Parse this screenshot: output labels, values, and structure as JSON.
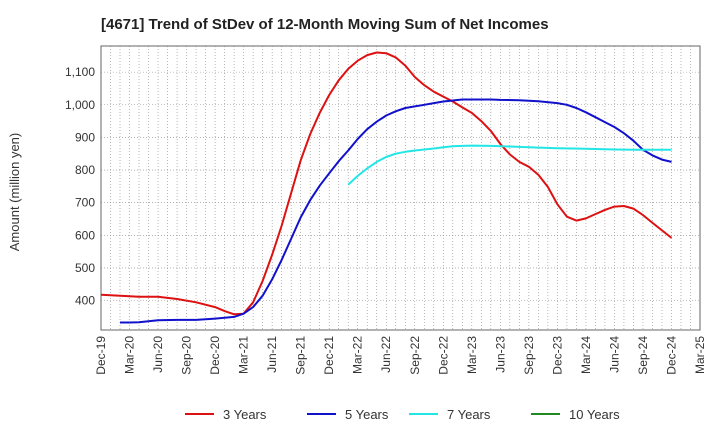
{
  "chart_data": {
    "type": "line",
    "title": "[4671]  Trend of StDev of 12-Month Moving Sum of Net Incomes",
    "ylabel": "Amount (million yen)",
    "xlabel": "",
    "ylim": [
      310,
      1180
    ],
    "yticks": [
      400,
      500,
      600,
      700,
      800,
      900,
      1000,
      1100
    ],
    "ytick_labels": [
      "400",
      "500",
      "600",
      "700",
      "800",
      "900",
      "1,000",
      "1,100"
    ],
    "xlim": [
      "2019-12",
      "2025-03"
    ],
    "xtick_labels": [
      "Dec-19",
      "Mar-20",
      "Jun-20",
      "Sep-20",
      "Dec-20",
      "Mar-21",
      "Jun-21",
      "Sep-21",
      "Dec-21",
      "Mar-22",
      "Jun-22",
      "Sep-22",
      "Dec-22",
      "Mar-23",
      "Jun-23",
      "Sep-23",
      "Dec-23",
      "Mar-24",
      "Jun-24",
      "Sep-24",
      "Dec-24",
      "Mar-25"
    ],
    "grid": true,
    "legend_position": "bottom",
    "series": [
      {
        "name": "3 Years",
        "color": "#dd1111",
        "points": [
          [
            "2019-12",
            418
          ],
          [
            "2020-02",
            415
          ],
          [
            "2020-04",
            412
          ],
          [
            "2020-06",
            412
          ],
          [
            "2020-08",
            405
          ],
          [
            "2020-10",
            395
          ],
          [
            "2020-12",
            380
          ],
          [
            "2021-01",
            368
          ],
          [
            "2021-02",
            358
          ],
          [
            "2021-03",
            360
          ],
          [
            "2021-04",
            395
          ],
          [
            "2021-05",
            460
          ],
          [
            "2021-06",
            540
          ],
          [
            "2021-07",
            630
          ],
          [
            "2021-08",
            730
          ],
          [
            "2021-09",
            830
          ],
          [
            "2021-10",
            910
          ],
          [
            "2021-11",
            975
          ],
          [
            "2021-12",
            1030
          ],
          [
            "2022-01",
            1075
          ],
          [
            "2022-02",
            1110
          ],
          [
            "2022-03",
            1135
          ],
          [
            "2022-04",
            1152
          ],
          [
            "2022-05",
            1160
          ],
          [
            "2022-06",
            1158
          ],
          [
            "2022-07",
            1145
          ],
          [
            "2022-08",
            1120
          ],
          [
            "2022-09",
            1085
          ],
          [
            "2022-10",
            1060
          ],
          [
            "2022-11",
            1040
          ],
          [
            "2022-12",
            1025
          ],
          [
            "2023-01",
            1010
          ],
          [
            "2023-02",
            992
          ],
          [
            "2023-03",
            975
          ],
          [
            "2023-04",
            950
          ],
          [
            "2023-05",
            920
          ],
          [
            "2023-06",
            880
          ],
          [
            "2023-07",
            848
          ],
          [
            "2023-08",
            825
          ],
          [
            "2023-09",
            810
          ],
          [
            "2023-10",
            785
          ],
          [
            "2023-11",
            748
          ],
          [
            "2023-12",
            695
          ],
          [
            "2024-01",
            657
          ],
          [
            "2024-02",
            645
          ],
          [
            "2024-03",
            652
          ],
          [
            "2024-04",
            665
          ],
          [
            "2024-05",
            678
          ],
          [
            "2024-06",
            688
          ],
          [
            "2024-07",
            690
          ],
          [
            "2024-08",
            682
          ],
          [
            "2024-09",
            662
          ],
          [
            "2024-10",
            638
          ],
          [
            "2024-11",
            615
          ],
          [
            "2024-12",
            592
          ]
        ]
      },
      {
        "name": "5 Years",
        "color": "#1111cc",
        "points": [
          [
            "2020-02",
            333
          ],
          [
            "2020-03",
            333
          ],
          [
            "2020-04",
            334
          ],
          [
            "2020-05",
            337
          ],
          [
            "2020-06",
            340
          ],
          [
            "2020-08",
            341
          ],
          [
            "2020-10",
            341
          ],
          [
            "2020-12",
            345
          ],
          [
            "2021-02",
            350
          ],
          [
            "2021-03",
            360
          ],
          [
            "2021-04",
            380
          ],
          [
            "2021-05",
            415
          ],
          [
            "2021-06",
            465
          ],
          [
            "2021-07",
            525
          ],
          [
            "2021-08",
            590
          ],
          [
            "2021-09",
            655
          ],
          [
            "2021-10",
            708
          ],
          [
            "2021-11",
            752
          ],
          [
            "2021-12",
            790
          ],
          [
            "2022-01",
            827
          ],
          [
            "2022-02",
            860
          ],
          [
            "2022-03",
            895
          ],
          [
            "2022-04",
            925
          ],
          [
            "2022-05",
            948
          ],
          [
            "2022-06",
            967
          ],
          [
            "2022-07",
            980
          ],
          [
            "2022-08",
            990
          ],
          [
            "2022-09",
            995
          ],
          [
            "2022-10",
            1000
          ],
          [
            "2022-11",
            1005
          ],
          [
            "2022-12",
            1010
          ],
          [
            "2023-01",
            1013
          ],
          [
            "2023-02",
            1016
          ],
          [
            "2023-03",
            1016
          ],
          [
            "2023-04",
            1016
          ],
          [
            "2023-05",
            1016
          ],
          [
            "2023-06",
            1015
          ],
          [
            "2023-08",
            1014
          ],
          [
            "2023-10",
            1011
          ],
          [
            "2023-12",
            1005
          ],
          [
            "2024-01",
            1000
          ],
          [
            "2024-02",
            990
          ],
          [
            "2024-03",
            977
          ],
          [
            "2024-04",
            962
          ],
          [
            "2024-05",
            947
          ],
          [
            "2024-06",
            932
          ],
          [
            "2024-07",
            913
          ],
          [
            "2024-08",
            890
          ],
          [
            "2024-09",
            862
          ],
          [
            "2024-10",
            845
          ],
          [
            "2024-11",
            832
          ],
          [
            "2024-12",
            825
          ]
        ]
      },
      {
        "name": "7 Years",
        "color": "#22e6e6",
        "points": [
          [
            "2022-02",
            755
          ],
          [
            "2022-03",
            782
          ],
          [
            "2022-04",
            805
          ],
          [
            "2022-05",
            825
          ],
          [
            "2022-06",
            840
          ],
          [
            "2022-07",
            850
          ],
          [
            "2022-08",
            856
          ],
          [
            "2022-09",
            860
          ],
          [
            "2022-10",
            863
          ],
          [
            "2022-11",
            866
          ],
          [
            "2022-12",
            870
          ],
          [
            "2023-01",
            873
          ],
          [
            "2023-02",
            874
          ],
          [
            "2023-03",
            875
          ],
          [
            "2023-05",
            874
          ],
          [
            "2023-07",
            872
          ],
          [
            "2023-09",
            870
          ],
          [
            "2023-12",
            867
          ],
          [
            "2024-03",
            865
          ],
          [
            "2024-06",
            863
          ],
          [
            "2024-09",
            862
          ],
          [
            "2024-12",
            862
          ]
        ]
      },
      {
        "name": "10 Years",
        "color": "#228822",
        "points": []
      }
    ]
  }
}
